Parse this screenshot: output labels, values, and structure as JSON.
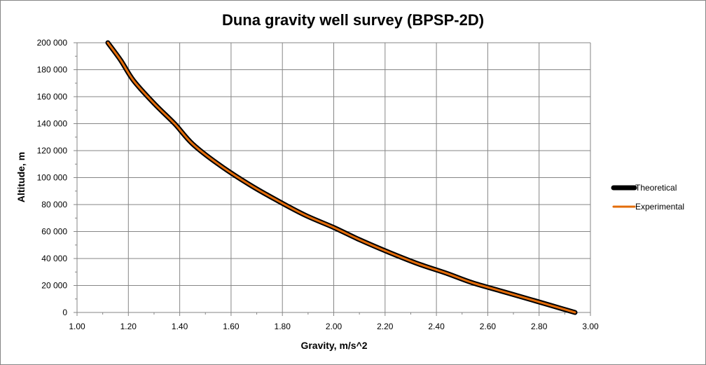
{
  "chart_data": {
    "type": "line",
    "title": "Duna gravity well survey (BPSP-2D)",
    "xlabel": "Gravity, m/s^2",
    "ylabel": "Altitude, m",
    "xlim": [
      1.0,
      3.0
    ],
    "ylim": [
      0,
      200000
    ],
    "x_ticks": [
      "1.00",
      "1.20",
      "1.40",
      "1.60",
      "1.80",
      "2.00",
      "2.20",
      "2.40",
      "2.60",
      "2.80",
      "3.00"
    ],
    "y_ticks": [
      "0",
      "20 000",
      "40 000",
      "60 000",
      "80 000",
      "100 000",
      "120 000",
      "140 000",
      "160 000",
      "180 000",
      "200 000"
    ],
    "grid": true,
    "legend_position": "right",
    "series": [
      {
        "name": "Theoretical",
        "color": "#000000",
        "x": [
          2.94,
          2.85,
          2.76,
          2.65,
          2.54,
          2.44,
          2.33,
          2.21,
          2.1,
          2.0,
          1.89,
          1.78,
          1.67,
          1.55,
          1.45,
          1.38,
          1.3,
          1.22,
          1.17,
          1.12
        ],
        "y": [
          0,
          5000,
          10000,
          16000,
          22000,
          29000,
          36000,
          45000,
          54000,
          63000,
          72000,
          83000,
          95000,
          110000,
          125000,
          140000,
          155000,
          172000,
          187000,
          200000
        ]
      },
      {
        "name": "Experimental",
        "color": "#e36c09",
        "x": [
          2.94,
          2.85,
          2.76,
          2.65,
          2.54,
          2.44,
          2.33,
          2.21,
          2.1,
          2.0,
          1.89,
          1.78,
          1.67,
          1.55,
          1.45,
          1.38,
          1.3,
          1.22,
          1.17,
          1.12
        ],
        "y": [
          0,
          5000,
          10000,
          16000,
          22000,
          29000,
          36000,
          45000,
          54000,
          63000,
          72000,
          83000,
          95000,
          110000,
          125000,
          140000,
          155000,
          172000,
          187000,
          200000
        ]
      }
    ]
  }
}
